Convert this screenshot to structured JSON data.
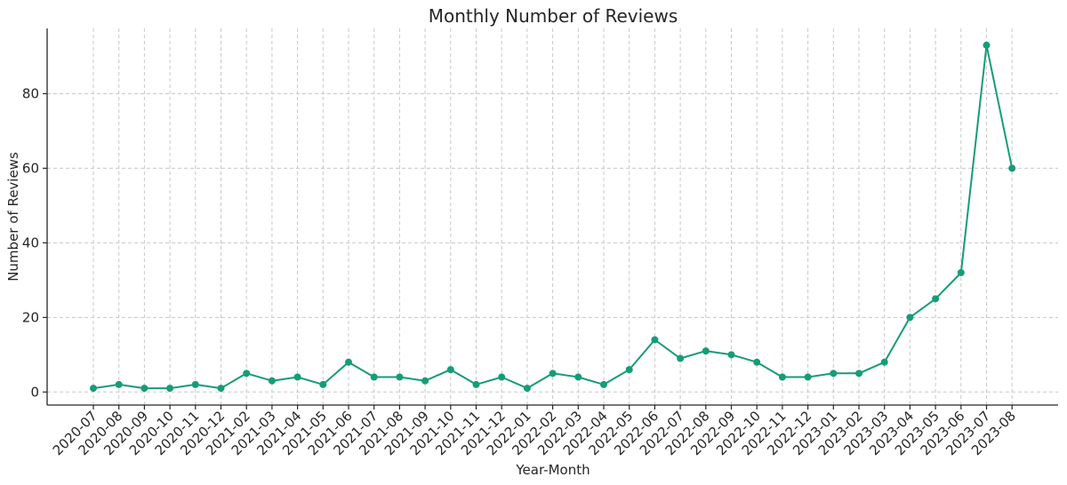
{
  "chart_data": {
    "type": "line",
    "title": "Monthly Number of Reviews",
    "xlabel": "Year-Month",
    "ylabel": "Number of Reviews",
    "ylim": [
      -3.5,
      97.5
    ],
    "yticks": [
      0,
      20,
      40,
      60,
      80
    ],
    "grid": true,
    "color": "#169c78",
    "categories": [
      "2020-07",
      "2020-08",
      "2020-09",
      "2020-10",
      "2020-11",
      "2020-12",
      "2021-02",
      "2021-03",
      "2021-04",
      "2021-05",
      "2021-06",
      "2021-07",
      "2021-08",
      "2021-09",
      "2021-10",
      "2021-11",
      "2021-12",
      "2022-01",
      "2022-02",
      "2022-03",
      "2022-04",
      "2022-05",
      "2022-06",
      "2022-07",
      "2022-08",
      "2022-09",
      "2022-10",
      "2022-11",
      "2022-12",
      "2023-01",
      "2023-02",
      "2023-03",
      "2023-04",
      "2023-05",
      "2023-06",
      "2023-07",
      "2023-08"
    ],
    "values": [
      1,
      2,
      1,
      1,
      2,
      1,
      5,
      3,
      4,
      2,
      8,
      4,
      4,
      3,
      6,
      2,
      4,
      1,
      5,
      4,
      2,
      6,
      14,
      9,
      11,
      10,
      8,
      4,
      4,
      5,
      5,
      8,
      20,
      25,
      32,
      93,
      60
    ]
  }
}
